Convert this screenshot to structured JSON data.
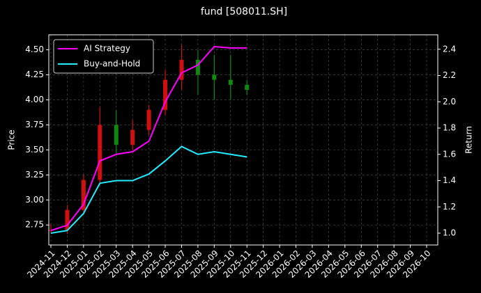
{
  "chart_data": {
    "type": "candlestick",
    "title": "fund [508011.SH]",
    "ylabel": "Price",
    "y2label": "Return",
    "x": [
      "2024-11",
      "2024-12",
      "2025-01",
      "2025-02",
      "2025-03",
      "2025-04",
      "2025-05",
      "2025-06",
      "2025-07",
      "2025-08",
      "2025-09",
      "2025-10",
      "2025-11"
    ],
    "open": [
      2.7,
      2.7,
      2.9,
      3.2,
      3.75,
      3.55,
      3.7,
      3.9,
      4.2,
      4.4,
      4.25,
      4.2,
      4.15
    ],
    "high": [
      2.76,
      2.95,
      3.25,
      3.93,
      3.9,
      3.8,
      3.95,
      4.3,
      4.55,
      4.5,
      4.45,
      4.45,
      4.2
    ],
    "low": [
      2.66,
      2.66,
      2.85,
      3.15,
      3.45,
      3.5,
      3.65,
      3.85,
      4.1,
      4.05,
      4.0,
      4.0,
      4.05
    ],
    "close": [
      2.7,
      2.9,
      3.2,
      3.75,
      3.55,
      3.7,
      3.9,
      4.2,
      4.4,
      4.25,
      4.2,
      4.15,
      4.1
    ],
    "up_color": "#d01010",
    "down_color": "#118811",
    "series": [
      {
        "name": "AI Strategy",
        "color": "#ff00ff",
        "axis": "y2",
        "values": [
          1.02,
          1.06,
          1.22,
          1.55,
          1.6,
          1.62,
          1.7,
          2.0,
          2.22,
          2.28,
          2.42,
          2.41,
          2.41
        ]
      },
      {
        "name": "Buy-and-Hold",
        "color": "#22eeff",
        "axis": "y2",
        "values": [
          1.0,
          1.02,
          1.15,
          1.38,
          1.4,
          1.4,
          1.45,
          1.55,
          1.66,
          1.6,
          1.62,
          1.6,
          1.58
        ]
      }
    ],
    "xlim": [
      "2024-11",
      "2026-10"
    ],
    "xticks": [
      "2024-11",
      "2024-12",
      "2025-01",
      "2025-02",
      "2025-03",
      "2025-04",
      "2025-05",
      "2025-06",
      "2025-07",
      "2025-08",
      "2025-09",
      "2025-10",
      "2025-11",
      "2025-12",
      "2026-01",
      "2026-02",
      "2026-03",
      "2026-04",
      "2026-05",
      "2026-06",
      "2026-07",
      "2026-08",
      "2026-09",
      "2026-10"
    ],
    "ylim": [
      2.55,
      4.65
    ],
    "yticks": [
      2.75,
      {
        "value": 3,
        "label": "3.00"
      },
      3.25,
      {
        "value": 3.5,
        "label": "3.50"
      },
      3.75,
      {
        "value": 4,
        "label": "4.00"
      },
      4.25,
      {
        "value": 4.5,
        "label": "4.50"
      }
    ],
    "y2lim": [
      0.91,
      2.51
    ],
    "y2ticks": [
      {
        "value": 1,
        "label": "1.0"
      },
      1.2,
      1.4,
      1.6,
      1.8,
      {
        "value": 2,
        "label": "2.0"
      },
      2.2,
      2.4
    ],
    "grid": true,
    "legend": "upper left"
  }
}
